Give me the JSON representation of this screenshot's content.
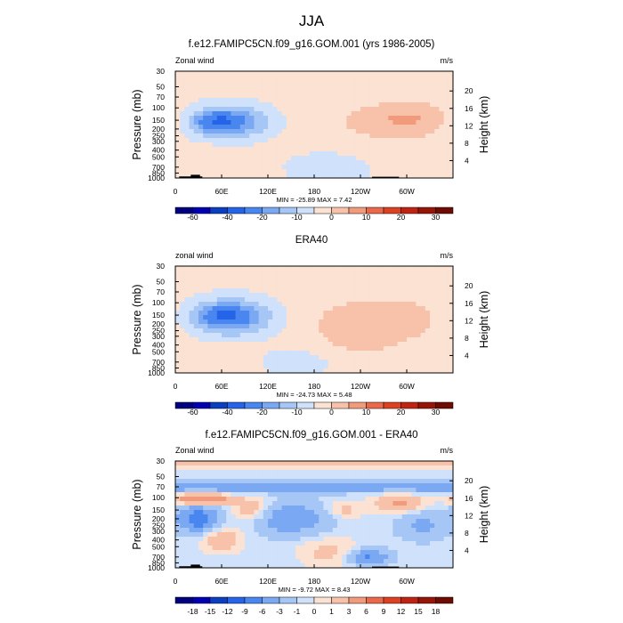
{
  "page_title": "JJA",
  "chart_data": [
    {
      "type": "heatmap",
      "title": "f.e12.FAMIPC5CN.f09_g16.GOM.001 (yrs 1986-2005)",
      "left_label": "Zonal wind",
      "units": "m/s",
      "xlabel": "",
      "ylabel": "Pressure (mb)",
      "y2label": "Height (km)",
      "x_ticks": [
        "0",
        "60E",
        "120E",
        "180",
        "120W",
        "60W"
      ],
      "x_tick_lons": [
        0,
        60,
        120,
        180,
        240,
        300
      ],
      "xlim": [
        0,
        360
      ],
      "y_ticks": [
        "30",
        "50",
        "70",
        "100",
        "150",
        "200",
        "250",
        "300",
        "400",
        "500",
        "700",
        "850",
        "1000"
      ],
      "y_tick_values": [
        30,
        50,
        70,
        100,
        150,
        200,
        250,
        300,
        400,
        500,
        700,
        850,
        1000
      ],
      "ylim": [
        1000,
        30
      ],
      "height_ticks": [
        "4",
        "8",
        "12",
        "16",
        "20"
      ],
      "height_tick_values": [
        4,
        8,
        12,
        16,
        20
      ],
      "stats": "MIN = -25.89  MAX =  7.42",
      "min": -25.89,
      "max": 7.42,
      "colorbar_levels": [
        -70,
        -60,
        -50,
        -40,
        -30,
        -20,
        -15,
        -10,
        -5,
        0,
        5,
        10,
        15,
        20,
        25,
        30,
        35
      ],
      "colorbar_labels": [
        "-60",
        "-40",
        "-20",
        "-10",
        "0",
        "10",
        "20",
        "30"
      ],
      "colorbar_label_values": [
        -60,
        -40,
        -20,
        -10,
        0,
        10,
        20,
        30
      ],
      "base_value": -3,
      "features": [
        {
          "lon": 0,
          "lat_p": 30,
          "lon_w": 720,
          "p_w": 0.35,
          "value": -2,
          "kind": "band_top"
        },
        {
          "lon": 65,
          "p": 160,
          "lon_w": 55,
          "p_w": 0.55,
          "value": -20
        },
        {
          "lon": 55,
          "p": 155,
          "lon_w": 25,
          "p_w": 0.25,
          "value": -12
        },
        {
          "lon": 300,
          "p": 140,
          "lon_w": 70,
          "p_w": 0.5,
          "value": 8
        },
        {
          "lon": 270,
          "p": 300,
          "lon_w": 120,
          "p_w": 0.9,
          "value": 2
        },
        {
          "lon": 200,
          "p": 700,
          "lon_w": 60,
          "p_w": 0.6,
          "value": -6
        },
        {
          "lon": 40,
          "p": 650,
          "lon_w": 40,
          "p_w": 0.5,
          "value": 2
        }
      ],
      "topography": [
        {
          "lon0": 5,
          "lon1": 35,
          "p": 950
        },
        {
          "lon0": 20,
          "lon1": 32,
          "p": 900
        },
        {
          "lon0": 255,
          "lon1": 290,
          "p": 960
        }
      ]
    },
    {
      "type": "heatmap",
      "title": "ERA40",
      "left_label": "zonal wind",
      "units": "m/s",
      "xlabel": "",
      "ylabel": "Pressure (mb)",
      "y2label": "Height (km)",
      "x_ticks": [
        "0",
        "60E",
        "120E",
        "180",
        "120W",
        "60W"
      ],
      "x_tick_lons": [
        0,
        60,
        120,
        180,
        240,
        300
      ],
      "xlim": [
        0,
        360
      ],
      "y_ticks": [
        "30",
        "50",
        "70",
        "100",
        "150",
        "200",
        "250",
        "300",
        "400",
        "500",
        "700",
        "850",
        "1000"
      ],
      "y_tick_values": [
        30,
        50,
        70,
        100,
        150,
        200,
        250,
        300,
        400,
        500,
        700,
        850,
        1000
      ],
      "ylim": [
        1000,
        30
      ],
      "height_ticks": [
        "4",
        "8",
        "12",
        "16",
        "20"
      ],
      "height_tick_values": [
        4,
        8,
        12,
        16,
        20
      ],
      "stats": "MIN = -24.73  MAX =  5.48",
      "min": -24.73,
      "max": 5.48,
      "colorbar_levels": [
        -70,
        -60,
        -50,
        -40,
        -30,
        -20,
        -15,
        -10,
        -5,
        0,
        5,
        10,
        15,
        20,
        25,
        30,
        35
      ],
      "colorbar_labels": [
        "-60",
        "-40",
        "-20",
        "-10",
        "0",
        "10",
        "20",
        "30"
      ],
      "colorbar_label_values": [
        -60,
        -40,
        -20,
        -10,
        0,
        10,
        20,
        30
      ],
      "base_value": -3,
      "features": [
        {
          "lon": 70,
          "p": 160,
          "lon_w": 55,
          "p_w": 0.6,
          "value": -20
        },
        {
          "lon": 65,
          "p": 150,
          "lon_w": 25,
          "p_w": 0.25,
          "value": -12
        },
        {
          "lon": 270,
          "p": 170,
          "lon_w": 90,
          "p_w": 0.75,
          "value": 6
        },
        {
          "lon": 230,
          "p": 400,
          "lon_w": 60,
          "p_w": 0.8,
          "value": 3
        },
        {
          "lon": 55,
          "p": 700,
          "lon_w": 45,
          "p_w": 0.5,
          "value": 3
        },
        {
          "lon": 160,
          "p": 700,
          "lon_w": 60,
          "p_w": 0.5,
          "value": -5
        }
      ],
      "topography": []
    },
    {
      "type": "heatmap",
      "title": "f.e12.FAMIPC5CN.f09_g16.GOM.001 - ERA40",
      "left_label": "Zonal wind",
      "units": "m/s",
      "xlabel": "",
      "ylabel": "Pressure (mb)",
      "y2label": "Height (km)",
      "x_ticks": [
        "0",
        "60E",
        "120E",
        "180",
        "120W",
        "60W"
      ],
      "x_tick_lons": [
        0,
        60,
        120,
        180,
        240,
        300
      ],
      "xlim": [
        0,
        360
      ],
      "y_ticks": [
        "30",
        "50",
        "70",
        "100",
        "150",
        "200",
        "250",
        "300",
        "400",
        "500",
        "700",
        "850",
        "1000"
      ],
      "y_tick_values": [
        30,
        50,
        70,
        100,
        150,
        200,
        250,
        300,
        400,
        500,
        700,
        850,
        1000
      ],
      "ylim": [
        1000,
        30
      ],
      "height_ticks": [
        "4",
        "8",
        "12",
        "16",
        "20"
      ],
      "height_tick_values": [
        4,
        8,
        12,
        16,
        20
      ],
      "stats": "MIN = -9.72  MAX =  8.43",
      "min": -9.72,
      "max": 8.43,
      "colorbar_levels": [
        -21,
        -18,
        -15,
        -12,
        -9,
        -6,
        -3,
        -1,
        0,
        1,
        3,
        6,
        9,
        12,
        15,
        18,
        21
      ],
      "colorbar_labels": [
        "-18",
        "-15",
        "-12",
        "-9",
        "-6",
        "-3",
        "-1",
        "0",
        "1",
        "3",
        "6",
        "9",
        "12",
        "15",
        "18"
      ],
      "colorbar_label_values": [
        -18,
        -15,
        -12,
        -9,
        -6,
        -3,
        -1,
        0,
        1,
        3,
        6,
        9,
        12,
        15,
        18
      ],
      "base_value": -0.5,
      "features": [
        {
          "lon": 180,
          "p": 70,
          "lon_w": 720,
          "p_w": 0.18,
          "value": -4,
          "kind": "band"
        },
        {
          "lon": 180,
          "p": 33,
          "lon_w": 720,
          "p_w": 0.12,
          "value": 2,
          "kind": "band"
        },
        {
          "lon": 35,
          "p": 105,
          "lon_w": 35,
          "p_w": 0.18,
          "value": 7
        },
        {
          "lon": 30,
          "p": 200,
          "lon_w": 25,
          "p_w": 0.4,
          "value": -8
        },
        {
          "lon": 100,
          "p": 150,
          "lon_w": 25,
          "p_w": 0.4,
          "value": 3
        },
        {
          "lon": 150,
          "p": 200,
          "lon_w": 45,
          "p_w": 0.5,
          "value": -5
        },
        {
          "lon": 290,
          "p": 120,
          "lon_w": 30,
          "p_w": 0.3,
          "value": 4
        },
        {
          "lon": 220,
          "p": 150,
          "lon_w": 25,
          "p_w": 0.3,
          "value": 2
        },
        {
          "lon": 320,
          "p": 250,
          "lon_w": 30,
          "p_w": 0.45,
          "value": -3
        },
        {
          "lon": 60,
          "p": 400,
          "lon_w": 25,
          "p_w": 0.4,
          "value": 3
        },
        {
          "lon": 250,
          "p": 700,
          "lon_w": 25,
          "p_w": 0.25,
          "value": -6
        },
        {
          "lon": 200,
          "p": 600,
          "lon_w": 40,
          "p_w": 0.5,
          "value": 2
        }
      ],
      "topography": [
        {
          "lon0": 5,
          "lon1": 35,
          "p": 950
        },
        {
          "lon0": 20,
          "lon1": 32,
          "p": 900
        },
        {
          "lon0": 255,
          "lon1": 290,
          "p": 960
        }
      ]
    }
  ],
  "colors": {
    "cb_colors": [
      "#00007f",
      "#0000b2",
      "#0a3fbf",
      "#2564e8",
      "#4a86f0",
      "#7aa8f3",
      "#a6c6f6",
      "#cfe1fb",
      "#fbe2d2",
      "#f8c2aa",
      "#f29b7c",
      "#e9694a",
      "#dc4122",
      "#bf2412",
      "#951608",
      "#6e0b02"
    ],
    "topo": "#000000"
  }
}
